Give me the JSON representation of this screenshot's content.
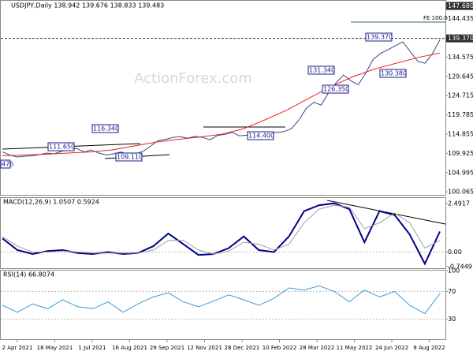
{
  "chart_data": [
    {
      "type": "line",
      "title": "USDJPY,Daily 138.942 139.676 138.833 139.483",
      "watermark": "ActionForex.com",
      "ylim": [
        99.1,
        149.0
      ],
      "yticks": [
        {
          "value": 147.68,
          "label": "147.680"
        },
        144.435,
        134.575,
        129.645,
        124.715,
        119.785,
        114.855,
        109.925,
        104.995,
        100.065
      ],
      "current": {
        "value": 139.37,
        "label": "139.370"
      },
      "fe_label": "FE 100.0",
      "annotations": [
        "111.650",
        "109.110",
        "476",
        "116.340",
        "114.400",
        "131.340",
        "126.350",
        "139.370",
        "130.380"
      ],
      "series": [
        {
          "name": "USDJPY",
          "color": "#2e4a8a",
          "values": [
            110.3,
            109.5,
            109.0,
            109.2,
            109.3,
            109.6,
            110.0,
            109.8,
            110.5,
            110.9,
            111.2,
            110.3,
            110.8,
            110.0,
            109.5,
            109.8,
            110.3,
            109.6,
            109.8,
            110.5,
            111.8,
            113.2,
            113.5,
            114.0,
            114.2,
            113.8,
            114.3,
            114.0,
            113.4,
            114.5,
            114.8,
            115.3,
            114.4,
            114.6,
            114.3,
            115.2,
            115.0,
            115.3,
            115.5,
            116.3,
            118.5,
            121.5,
            123.0,
            122.3,
            125.5,
            128.0,
            130.0,
            128.5,
            127.5,
            130.5,
            134.0,
            135.5,
            136.5,
            137.5,
            138.5,
            136.0,
            133.5,
            133.0,
            135.5,
            139.0
          ]
        },
        {
          "name": "SMA",
          "color": "#e8231f",
          "values": [
            109.3,
            109.5,
            109.7,
            110.0,
            110.3,
            110.8,
            111.8,
            112.8,
            113.5,
            114.1,
            114.8,
            116.2,
            118.5,
            121.0,
            124.0,
            127.0,
            129.5,
            131.5,
            133.0,
            134.5,
            135.6
          ]
        }
      ]
    },
    {
      "type": "line",
      "title": "MACD(12,26,9) 1.0507 0.5924",
      "ylim": [
        -0.87,
        2.77
      ],
      "yticks": [
        2.4917,
        {
          "value": 0,
          "label": "0.00"
        },
        -0.7449
      ],
      "series": [
        {
          "name": "MACD",
          "color": "#00008b",
          "values": [
            0.7,
            0.1,
            -0.1,
            0.05,
            0.1,
            -0.05,
            -0.1,
            0.0,
            -0.1,
            -0.05,
            0.3,
            0.95,
            0.4,
            -0.15,
            -0.1,
            0.2,
            0.8,
            0.1,
            0.0,
            0.8,
            2.1,
            2.4,
            2.5,
            2.2,
            0.5,
            2.1,
            1.9,
            0.9,
            -0.6,
            1.0507
          ]
        },
        {
          "name": "Signal",
          "color": "#a0a0a0",
          "values": [
            0.8,
            0.3,
            0.0,
            0.0,
            0.05,
            0.0,
            -0.05,
            -0.05,
            -0.05,
            -0.05,
            0.1,
            0.6,
            0.6,
            0.1,
            -0.1,
            0.05,
            0.5,
            0.4,
            0.1,
            0.4,
            1.5,
            2.2,
            2.4,
            2.3,
            1.2,
            1.5,
            2.0,
            1.5,
            0.2,
            0.5924
          ]
        }
      ]
    },
    {
      "type": "line",
      "title": "RSI(14) 66.8074",
      "ylim": [
        0,
        100
      ],
      "yticks": [
        100,
        70,
        30
      ],
      "levels": [
        70,
        30
      ],
      "xlabels": [
        "2 Apr 2021",
        "18 May 2021",
        "1 Jul 2021",
        "16 Aug 2021",
        "29 Sep 2021",
        "12 Nov 2021",
        "28 Dec 2021",
        "10 Feb 2022",
        "28 Mar 2022",
        "11 May 2022",
        "24 Jun 2022",
        "9 Aug 2022"
      ],
      "series": [
        {
          "name": "RSI",
          "color": "#3b9bd6",
          "values": [
            50,
            40,
            52,
            45,
            58,
            48,
            45,
            55,
            40,
            52,
            62,
            68,
            55,
            48,
            56,
            65,
            58,
            50,
            60,
            75,
            72,
            78,
            70,
            55,
            72,
            62,
            70,
            50,
            38,
            66.8074
          ]
        }
      ]
    }
  ]
}
